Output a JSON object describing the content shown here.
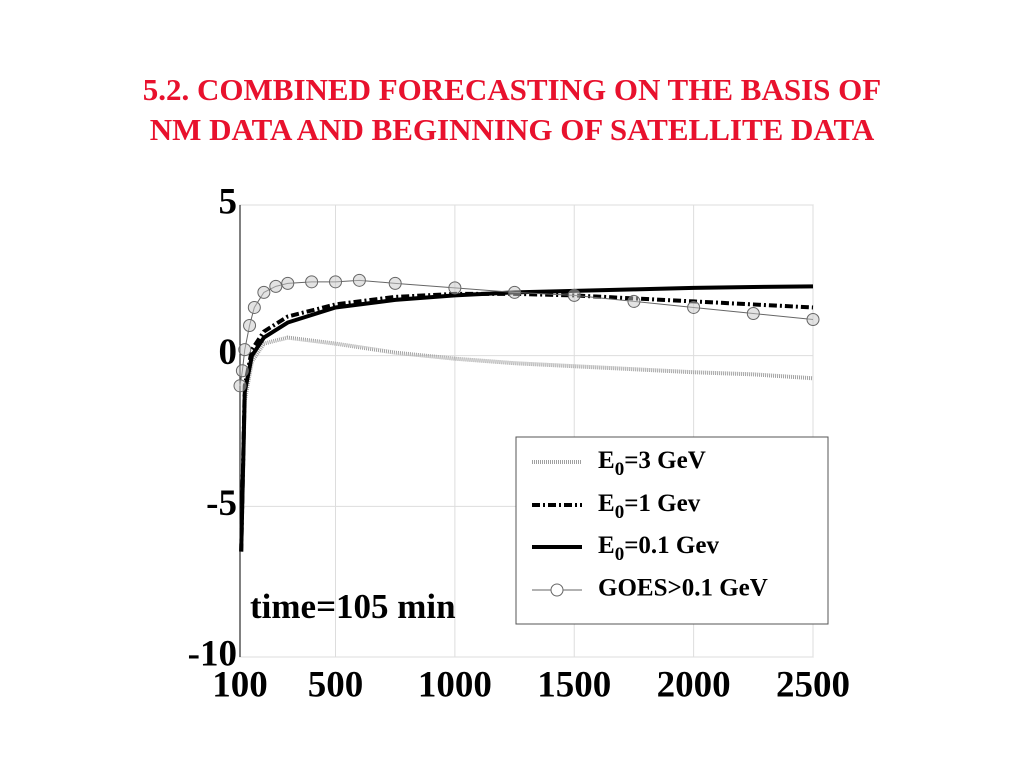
{
  "chart_data": {
    "type": "line",
    "title": [
      "5.2. COMBINED FORECASTING ON THE BASIS OF",
      "NM DATA AND BEGINNING OF SATELLITE DATA"
    ],
    "annotation": "time=105 min",
    "xlim": [
      100,
      2500
    ],
    "xticks": [
      100,
      500,
      1000,
      1500,
      2000,
      2500
    ],
    "ylim": [
      -10,
      5
    ],
    "yticks": [
      -10,
      -5,
      0,
      5
    ],
    "grid": true,
    "legend": "lower right",
    "series": [
      {
        "name": "E0=3 GeV",
        "color": "#a0a0a0",
        "style": "dotted",
        "x": [
          105,
          120,
          150,
          200,
          300,
          500,
          750,
          1000,
          1250,
          1500,
          1750,
          2000,
          2250,
          2500
        ],
        "values": [
          -6.5,
          -1.5,
          -0.2,
          0.4,
          0.6,
          0.4,
          0.1,
          -0.1,
          -0.25,
          -0.35,
          -0.45,
          -0.55,
          -0.62,
          -0.75
        ]
      },
      {
        "name": "E0=1 Gev",
        "color": "#000000",
        "style": "dashdot",
        "x": [
          105,
          120,
          150,
          200,
          300,
          500,
          750,
          1000,
          1250,
          1500,
          1750,
          2000,
          2250,
          2500
        ],
        "values": [
          -6.5,
          -1,
          0.2,
          0.8,
          1.3,
          1.7,
          1.95,
          2.05,
          2.05,
          2,
          1.9,
          1.8,
          1.7,
          1.6
        ]
      },
      {
        "name": "E0=0.1 Gev",
        "color": "#000000",
        "style": "solid",
        "x": [
          105,
          120,
          150,
          200,
          300,
          500,
          750,
          1000,
          1250,
          1500,
          1750,
          2000,
          2250,
          2500
        ],
        "values": [
          -6.5,
          -1.2,
          0,
          0.6,
          1.1,
          1.6,
          1.85,
          2,
          2.1,
          2.15,
          2.2,
          2.25,
          2.28,
          2.3
        ]
      },
      {
        "name": "GOES>0.1 GeV",
        "color": "#666666",
        "style": "circles",
        "x": [
          100,
          110,
          120,
          140,
          160,
          200,
          250,
          300,
          400,
          500,
          600,
          750,
          1000,
          1250,
          1500,
          1750,
          2000,
          2250,
          2500
        ],
        "values": [
          -1,
          -0.5,
          0.2,
          1,
          1.6,
          2.1,
          2.3,
          2.4,
          2.45,
          2.45,
          2.5,
          2.4,
          2.25,
          2.1,
          2,
          1.8,
          1.6,
          1.4,
          1.2
        ]
      }
    ]
  }
}
